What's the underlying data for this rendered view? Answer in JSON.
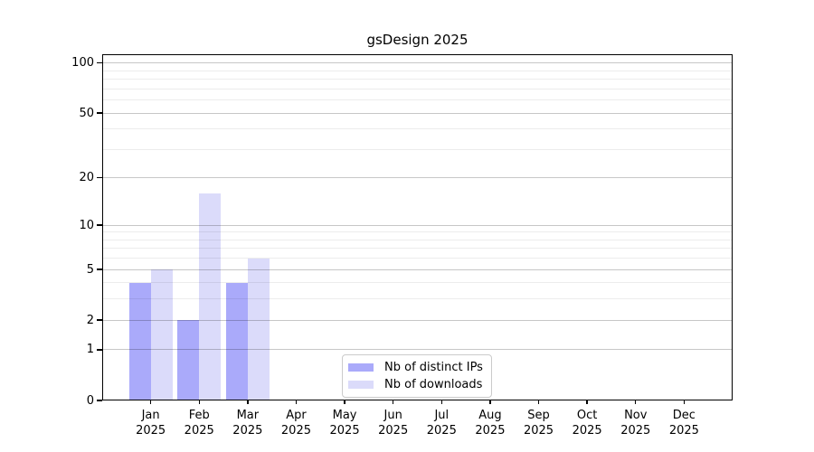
{
  "title": "gsDesign 2025",
  "legend": {
    "items": [
      {
        "label": "Nb of distinct IPs",
        "color": "#aaaafa"
      },
      {
        "label": "Nb of downloads",
        "color": "#dbdbfa"
      }
    ]
  },
  "chart_data": {
    "type": "bar",
    "title": "gsDesign 2025",
    "scale": "log1p",
    "grid": true,
    "legend_position": "lower center inside plot",
    "categories": [
      "Jan 2025",
      "Feb 2025",
      "Mar 2025",
      "Apr 2025",
      "May 2025",
      "Jun 2025",
      "Jul 2025",
      "Aug 2025",
      "Sep 2025",
      "Oct 2025",
      "Nov 2025",
      "Dec 2025"
    ],
    "month_labels": [
      "Jan",
      "Feb",
      "Mar",
      "Apr",
      "May",
      "Jun",
      "Jul",
      "Aug",
      "Sep",
      "Oct",
      "Nov",
      "Dec"
    ],
    "year_label": "2025",
    "series": [
      {
        "name": "Nb of distinct IPs",
        "key": "distinct-ips",
        "color": "#aaaafa",
        "values": [
          4,
          2,
          4,
          0,
          0,
          0,
          0,
          0,
          0,
          0,
          0,
          0
        ]
      },
      {
        "name": "Nb of downloads",
        "key": "downloads",
        "color": "#dbdbfa",
        "values": [
          5,
          16,
          6,
          0,
          0,
          0,
          0,
          0,
          0,
          0,
          0,
          0
        ]
      }
    ],
    "y_major_ticks": [
      0,
      1,
      2,
      5,
      10,
      20,
      50,
      100
    ],
    "y_minor_gridlines": [
      3,
      4,
      6,
      7,
      8,
      9,
      30,
      40,
      60,
      70,
      80,
      90
    ],
    "ylim": [
      0,
      113
    ]
  }
}
